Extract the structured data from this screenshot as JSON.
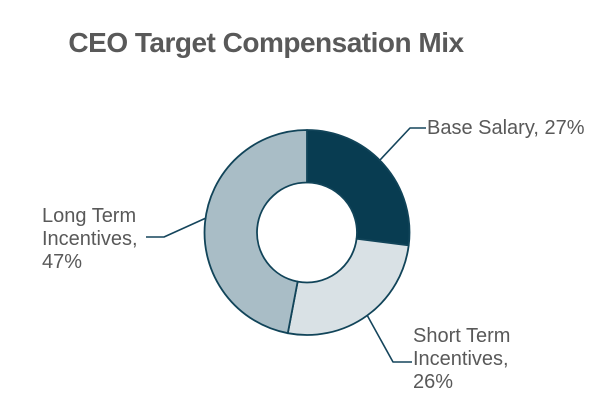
{
  "title": "CEO Target Compensation Mix",
  "colors": {
    "text": "#595959",
    "line": "#15455c",
    "background": "#ffffff",
    "stroke": "#114459"
  },
  "chart_data": {
    "type": "pie",
    "subtype": "donut",
    "title": "CEO Target Compensation Mix",
    "start_angle_deg": 0,
    "direction": "clockwise",
    "inner_radius_ratio": 0.49,
    "legend": "none",
    "categories": [
      "Base Salary",
      "Short Term Incentives",
      "Long Term Incentives"
    ],
    "values": [
      27,
      26,
      47
    ],
    "unit": "%",
    "segments": [
      {
        "label": "Base Salary",
        "value": 27,
        "color": "#083c51"
      },
      {
        "label": "Short Term Incentives",
        "value": 26,
        "color": "#d9e1e5"
      },
      {
        "label": "Long Term Incentives",
        "value": 47,
        "color": "#a9bdc6"
      }
    ],
    "labels": [
      {
        "segment": "Base Salary",
        "lines": [
          "Base Salary, 27%"
        ]
      },
      {
        "segment": "Short Term Incentives",
        "lines": [
          "Short Term",
          "Incentives,",
          "26%"
        ]
      },
      {
        "segment": "Long Term Incentives",
        "lines": [
          "Long Term",
          "Incentives,",
          "47%"
        ]
      }
    ]
  }
}
